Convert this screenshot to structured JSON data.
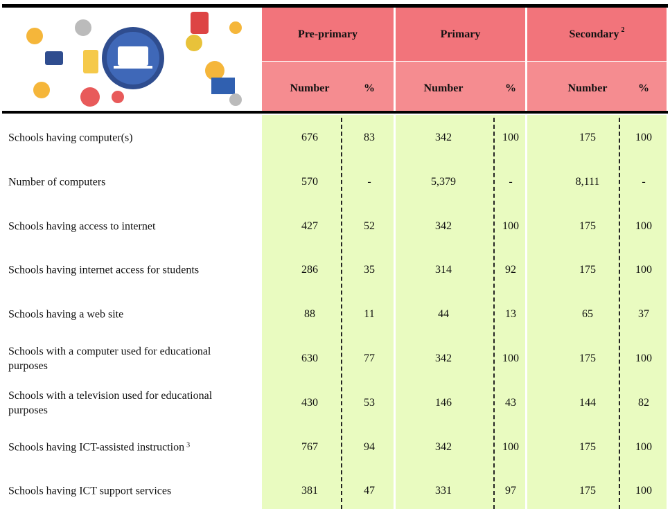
{
  "header": {
    "groups": [
      {
        "name": "Pre-primary"
      },
      {
        "name": "Primary"
      },
      {
        "name": "Secondary",
        "note": "2"
      }
    ],
    "subheaders": [
      "Number",
      "%",
      "Number",
      "%",
      "Number",
      "%"
    ]
  },
  "rows": [
    {
      "label": "Schools having computer(s)",
      "values": [
        "676",
        "83",
        "342",
        "100",
        "175",
        "100"
      ]
    },
    {
      "label": "Number of computers",
      "values": [
        "570",
        "-",
        "5,379",
        "-",
        "8,111",
        "-"
      ]
    },
    {
      "label": "Schools having access to internet",
      "values": [
        "427",
        "52",
        "342",
        "100",
        "175",
        "100"
      ]
    },
    {
      "label": "Schools having internet access for students",
      "values": [
        "286",
        "35",
        "314",
        "92",
        "175",
        "100"
      ]
    },
    {
      "label": "Schools having a web site",
      "values": [
        "88",
        "11",
        "44",
        "13",
        "65",
        "37"
      ]
    },
    {
      "label": "Schools with a computer used for educational purposes",
      "values": [
        "630",
        "77",
        "342",
        "100",
        "175",
        "100"
      ]
    },
    {
      "label": "Schools with a television used for educational purposes",
      "values": [
        "430",
        "53",
        "146",
        "43",
        "144",
        "82"
      ]
    },
    {
      "label": "Schools having ICT-assisted instruction",
      "note": "3",
      "values": [
        "767",
        "94",
        "342",
        "100",
        "175",
        "100"
      ]
    },
    {
      "label": "Schools having ICT support services",
      "values": [
        "381",
        "47",
        "331",
        "97",
        "175",
        "100"
      ]
    }
  ]
}
